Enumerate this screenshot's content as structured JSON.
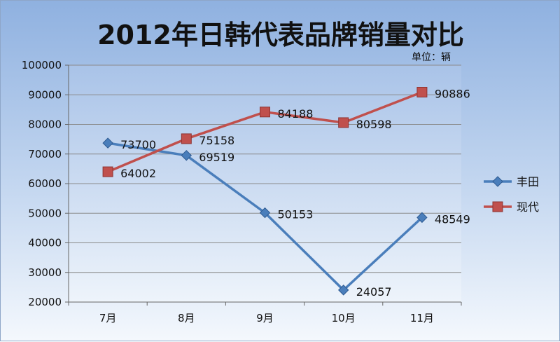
{
  "title": "2012年日韩代表品牌销量对比",
  "unit": "单位：辆",
  "chart_data": {
    "type": "line",
    "title": "2012年日韩代表品牌销量对比",
    "unit": "单位：辆",
    "categories": [
      "7月",
      "8月",
      "9月",
      "10月",
      "11月"
    ],
    "series": [
      {
        "name": "丰田",
        "color": "#4a7ebb",
        "marker": "diamond",
        "values": [
          73700,
          69519,
          50153,
          24057,
          48549
        ]
      },
      {
        "name": "现代",
        "color": "#c0504d",
        "marker": "square",
        "values": [
          64002,
          75158,
          84188,
          80598,
          90886
        ]
      }
    ],
    "ylim": [
      20000,
      100000
    ],
    "yticks": [
      20000,
      30000,
      40000,
      50000,
      60000,
      70000,
      80000,
      90000,
      100000
    ],
    "grid": true,
    "legend": "right",
    "data_labels": true
  }
}
